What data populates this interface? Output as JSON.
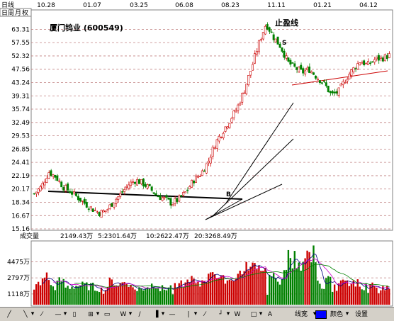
{
  "window": {
    "period_label": "日线",
    "period_tabs": [
      "日",
      "周",
      "月",
      "权"
    ],
    "stock_title": "厦门钨业 (600549)"
  },
  "price_axis": {
    "labels": [
      "63.31",
      "57.55",
      "52.32",
      "47.56",
      "43.24",
      "39.31",
      "35.74",
      "32.49",
      "29.53",
      "26.85",
      "24.41",
      "22.19",
      "20.17",
      "18.34",
      "16.67",
      "15.16"
    ],
    "ylim": [
      15.16,
      72
    ]
  },
  "date_labels": [
    "10.28",
    "01.07",
    "03.25",
    "06.08",
    "08.23",
    "11.11",
    "01.21",
    "04.12"
  ],
  "annotations": {
    "top_label": "止盈线",
    "s_label": "S",
    "b_label": "B"
  },
  "volume_panel": {
    "label": "成交量",
    "total": "2149.43万",
    "ma5": "5:2301.64万",
    "ma10": "10:2622.47万",
    "ma20": "20:3268.49万",
    "axis_labels": [
      "4475万",
      "2797万",
      "1118万"
    ],
    "ma_colors": {
      "ma5": "#000080",
      "ma10": "#cc00cc",
      "ma20": "#008000"
    }
  },
  "toolbar": {
    "tools": [
      "╱",
      "╲",
      "⁄",
      "—",
      "▯",
      "⊞",
      "▭",
      "W",
      "∕",
      "▐",
      "—",
      "|",
      "⁄",
      "┘",
      "W",
      "□",
      "A"
    ],
    "line_width_label": "线宽",
    "color_label": "颜色",
    "settings_label": "设置",
    "selected_color": "#0000ff"
  },
  "colors": {
    "up_candle": "#cc0000",
    "down_candle": "#008000",
    "grid": "#c08080",
    "axis": "#000000"
  },
  "chart_data": {
    "type": "candlestick",
    "title": "厦门钨业 (600549)",
    "x_ticks": [
      "10.28",
      "01.07",
      "03.25",
      "06.08",
      "08.23",
      "11.11",
      "01.21",
      "04.12"
    ],
    "y_ticks": [
      63.31,
      57.55,
      52.32,
      47.56,
      43.24,
      39.31,
      35.74,
      32.49,
      29.53,
      26.85,
      24.41,
      22.19,
      20.17,
      18.34,
      16.67,
      15.16
    ],
    "price_path_close": [
      19.5,
      20.5,
      22.8,
      22.0,
      20.5,
      19.8,
      19.0,
      18.2,
      17.5,
      17.0,
      17.3,
      18.5,
      19.5,
      20.8,
      21.5,
      21.0,
      20.2,
      19.2,
      18.8,
      18.2,
      18.8,
      19.8,
      21.5,
      22.5,
      24.5,
      28.0,
      30.5,
      33.0,
      36.0,
      41.0,
      48.0,
      57.0,
      66.0,
      60.0,
      56.0,
      50.0,
      48.0,
      46.5,
      47.5,
      45.0,
      43.0,
      39.5,
      40.5,
      44.5,
      47.5,
      50.5,
      49.0,
      51.0,
      51.5,
      52.5
    ],
    "volume_ma": {
      "ma5": 2301.64,
      "ma10": 2622.47,
      "ma20": 3268.49
    },
    "volume_last": 2149.43,
    "volume_ticks": [
      4475,
      2797,
      1118
    ]
  }
}
